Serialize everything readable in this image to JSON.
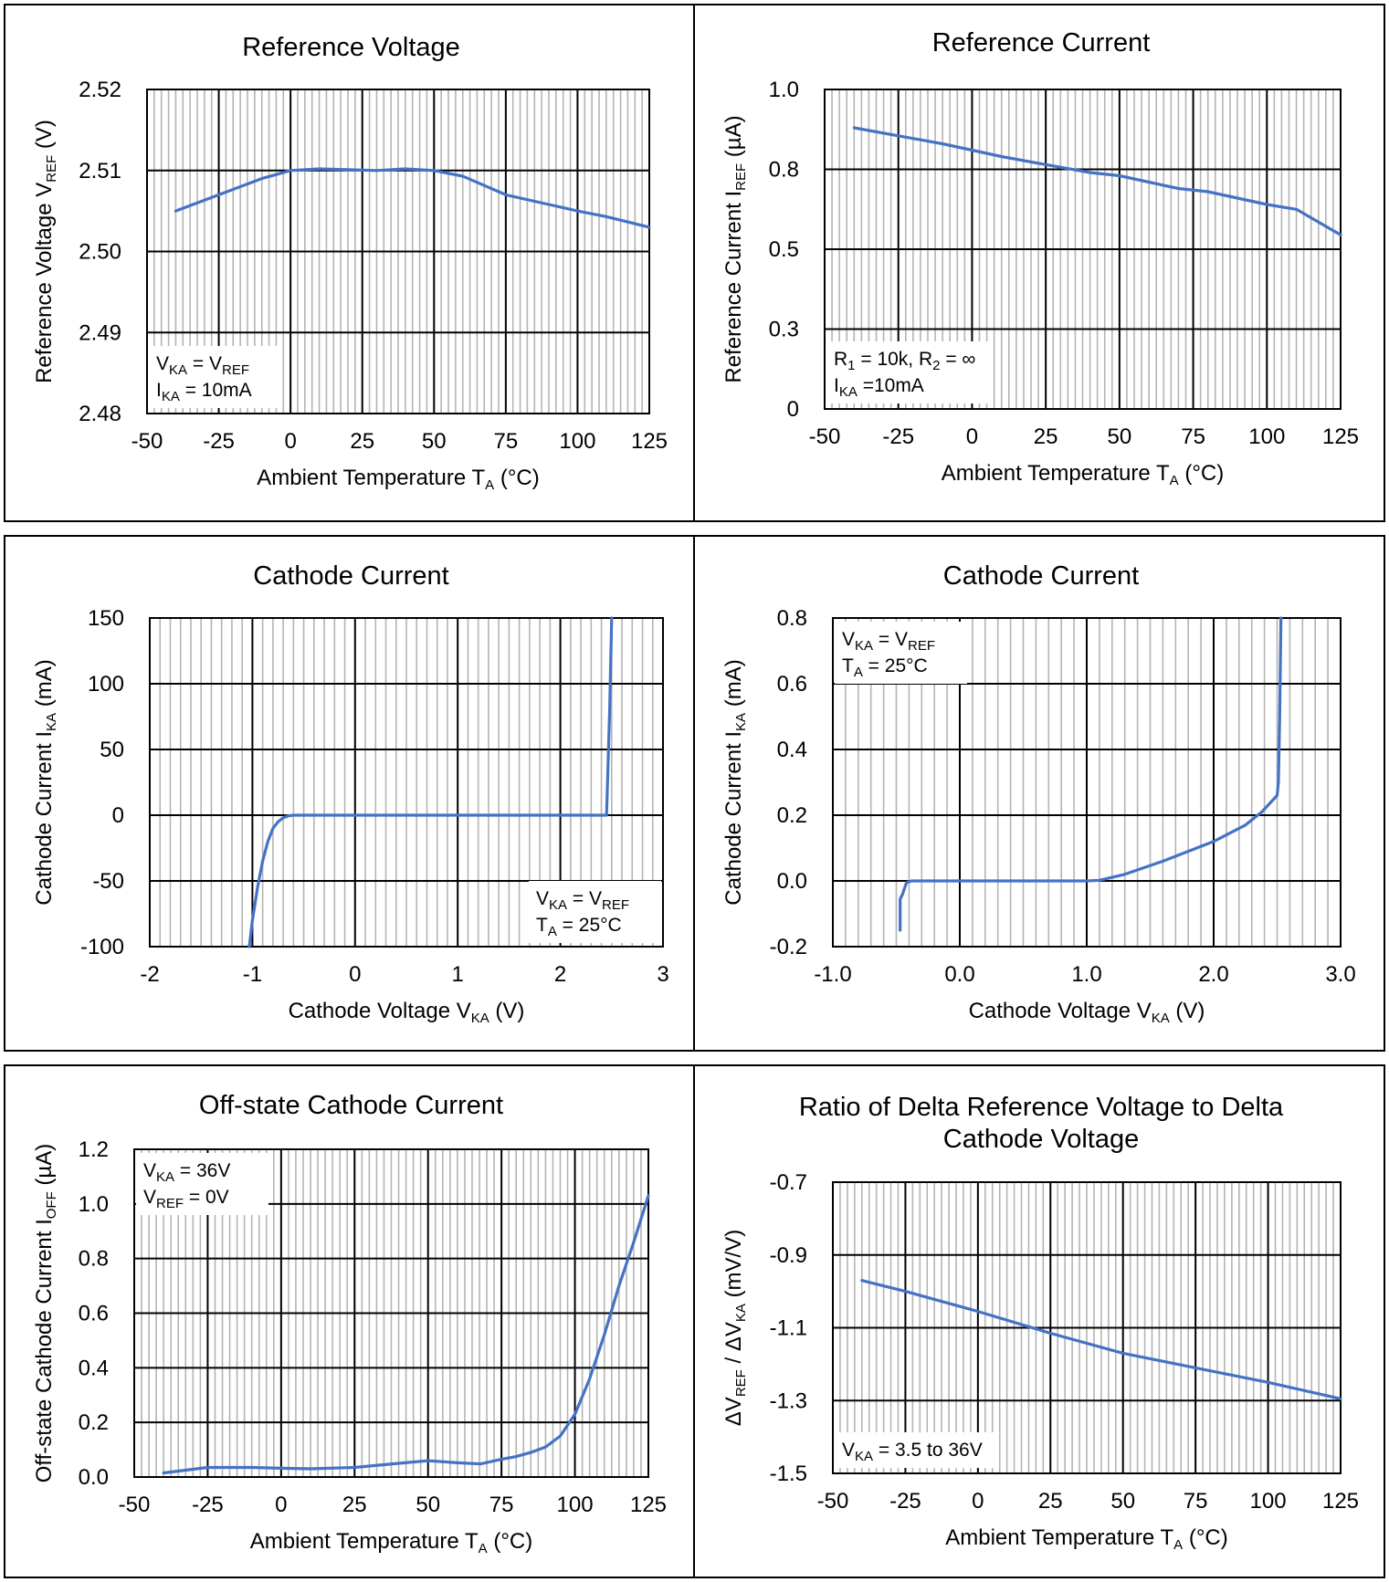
{
  "colors": {
    "series": "#4472C4",
    "grid_major": "#000000",
    "grid_minor": "#b4b4b4",
    "frame": "#000000"
  },
  "chart_data": [
    {
      "id": "ref-voltage",
      "type": "line",
      "title": "Reference Voltage",
      "xlabel": {
        "main": "Ambient Temperature T",
        "sub": "A",
        "tail": " (°C)"
      },
      "ylabel": {
        "main": "Reference Voltage V",
        "sub": "REF",
        "tail": " (V)"
      },
      "xlim": [
        -50,
        125
      ],
      "ylim": [
        2.48,
        2.52
      ],
      "xticks": [
        -50,
        -25,
        0,
        25,
        50,
        75,
        100,
        125
      ],
      "xtick_labels": [
        "-50",
        "-25",
        "0",
        "25",
        "50",
        "75",
        "100",
        "125"
      ],
      "yticks": [
        2.48,
        2.49,
        2.5,
        2.51,
        2.52
      ],
      "ytick_labels": [
        "2.48",
        "2.49",
        "2.50",
        "2.51",
        "2.52"
      ],
      "x_minor": 5,
      "grid": true,
      "annotation": [
        {
          "main": "V",
          "sub": "KA",
          "tail": " = V",
          "sub2": "REF",
          "tail2": ""
        },
        {
          "main": "I",
          "sub": "KA",
          "tail": " = 10mA",
          "sub2": "",
          "tail2": ""
        }
      ],
      "annotation_position": "bottom-left",
      "series": [
        {
          "x": [
            -40,
            -25,
            -10,
            0,
            10,
            20,
            30,
            40,
            50,
            60,
            75,
            90,
            100,
            110,
            125
          ],
          "y": [
            2.505,
            2.507,
            2.509,
            2.51,
            2.5102,
            2.5101,
            2.51,
            2.5102,
            2.51,
            2.5093,
            2.507,
            2.5058,
            2.505,
            2.5043,
            2.503
          ]
        }
      ]
    },
    {
      "id": "ref-current",
      "type": "line",
      "title": "Reference Current",
      "xlabel": {
        "main": "Ambient Temperature T",
        "sub": "A",
        "tail": " (°C)"
      },
      "ylabel": {
        "main": "Reference Current I",
        "sub": "REF",
        "tail": " (µA)"
      },
      "xlim": [
        -50,
        125
      ],
      "ylim": [
        0,
        1.0
      ],
      "xticks": [
        -50,
        -25,
        0,
        25,
        50,
        75,
        100,
        125
      ],
      "xtick_labels": [
        "-50",
        "-25",
        "0",
        "25",
        "50",
        "75",
        "100",
        "125"
      ],
      "yticks": [
        0,
        0.25,
        0.5,
        0.75,
        1.0
      ],
      "ytick_labels": [
        "0",
        "0.3",
        "0.5",
        "0.8",
        "1.0"
      ],
      "x_minor": 5,
      "grid": true,
      "annotation": [
        {
          "main": "R",
          "sub": "1",
          "tail": " = 10k, R",
          "sub2": "2",
          "tail2": " = ∞"
        },
        {
          "main": "I",
          "sub": "KA",
          "tail": " =10mA",
          "sub2": "",
          "tail2": ""
        }
      ],
      "annotation_position": "bottom-left",
      "series": [
        {
          "x": [
            -40,
            -25,
            -10,
            0,
            10,
            25,
            40,
            50,
            60,
            70,
            80,
            90,
            100,
            110,
            125
          ],
          "y": [
            0.88,
            0.855,
            0.83,
            0.81,
            0.79,
            0.765,
            0.74,
            0.73,
            0.71,
            0.69,
            0.68,
            0.66,
            0.64,
            0.625,
            0.545
          ]
        }
      ]
    },
    {
      "id": "cathode-current-wide",
      "type": "line",
      "title": "Cathode Current",
      "xlabel": {
        "main": "Cathode Voltage V",
        "sub": "KA",
        "tail": " (V)"
      },
      "ylabel": {
        "main": "Cathode Current  I",
        "sub": "KA",
        "tail": " (mA)"
      },
      "xlim": [
        -2,
        3
      ],
      "ylim": [
        -100,
        150
      ],
      "xticks": [
        -2,
        -1,
        0,
        1,
        2,
        3
      ],
      "xtick_labels": [
        "-2",
        "-1",
        "0",
        "1",
        "2",
        "3"
      ],
      "yticks": [
        -100,
        -50,
        0,
        50,
        100,
        150
      ],
      "ytick_labels": [
        "-100",
        "-50",
        "0",
        "50",
        "100",
        "150"
      ],
      "x_minor": 5,
      "grid": true,
      "annotation": [
        {
          "main": "V",
          "sub": "KA",
          "tail": " = V",
          "sub2": "REF",
          "tail2": ""
        },
        {
          "main": "T",
          "sub": "A",
          "tail": " = 25°C",
          "sub2": "",
          "tail2": ""
        }
      ],
      "annotation_position": "bottom-right",
      "series": [
        {
          "x": [
            -1.03,
            -1.0,
            -0.95,
            -0.9,
            -0.85,
            -0.8,
            -0.75,
            -0.7,
            -0.65,
            -0.6,
            -0.55,
            -0.5,
            0,
            1,
            2,
            2.45,
            2.48,
            2.5
          ],
          "y": [
            -100,
            -80,
            -55,
            -35,
            -20,
            -10,
            -5,
            -2,
            -0.5,
            0,
            0,
            0,
            0,
            0,
            0,
            0,
            80,
            150
          ]
        }
      ]
    },
    {
      "id": "cathode-current-zoom",
      "type": "line",
      "title": "Cathode Current",
      "xlabel": {
        "main": "Cathode Voltage V",
        "sub": "KA",
        "tail": " (V)"
      },
      "ylabel": {
        "main": "Cathode Current  I",
        "sub": "KA",
        "tail": " (mA)"
      },
      "xlim": [
        -1.0,
        3.0
      ],
      "ylim": [
        -0.2,
        0.8
      ],
      "xticks": [
        -1.0,
        0.0,
        1.0,
        2.0,
        3.0
      ],
      "xtick_labels": [
        "-1.0",
        "0.0",
        "1.0",
        "2.0",
        "3.0"
      ],
      "yticks": [
        -0.2,
        0.0,
        0.2,
        0.4,
        0.6,
        0.8
      ],
      "ytick_labels": [
        "-0.2",
        "0.0",
        "0.2",
        "0.4",
        "0.6",
        "0.8"
      ],
      "x_minor": 5,
      "grid": true,
      "annotation": [
        {
          "main": "V",
          "sub": "KA",
          "tail": " = V",
          "sub2": "REF",
          "tail2": ""
        },
        {
          "main": "T",
          "sub": "A",
          "tail": " = 25°C",
          "sub2": "",
          "tail2": ""
        }
      ],
      "annotation_position": "top-left",
      "series": [
        {
          "x": [
            -0.47,
            -0.47,
            -0.45,
            -0.42,
            -0.38,
            0.0,
            0.5,
            1.0,
            1.1,
            1.3,
            1.6,
            2.0,
            2.25,
            2.38,
            2.5,
            2.51,
            2.52,
            2.53
          ],
          "y": [
            -0.15,
            -0.055,
            -0.04,
            -0.005,
            0,
            0,
            0,
            0,
            0.002,
            0.02,
            0.06,
            0.12,
            0.17,
            0.21,
            0.26,
            0.3,
            0.5,
            0.8
          ]
        }
      ]
    },
    {
      "id": "off-state-current",
      "type": "line",
      "title": "Off-state Cathode Current",
      "xlabel": {
        "main": "Ambient Temperature T",
        "sub": "A",
        "tail": " (°C)"
      },
      "ylabel": {
        "main": "Off-state Cathode Current I",
        "sub": "OFF",
        "tail": " (µA)"
      },
      "xlim": [
        -50,
        125
      ],
      "ylim": [
        0,
        1.2
      ],
      "xticks": [
        -50,
        -25,
        0,
        25,
        50,
        75,
        100,
        125
      ],
      "xtick_labels": [
        "-50",
        "-25",
        "0",
        "25",
        "50",
        "75",
        "100",
        "125"
      ],
      "yticks": [
        0,
        0.2,
        0.4,
        0.6,
        0.8,
        1.0,
        1.2
      ],
      "ytick_labels": [
        "0.0",
        "0.2",
        "0.4",
        "0.6",
        "0.8",
        "1.0",
        "1.2"
      ],
      "x_minor": 5,
      "grid": true,
      "annotation": [
        {
          "main": "V",
          "sub": "KA",
          "tail": " = 36V",
          "sub2": "",
          "tail2": ""
        },
        {
          "main": "V",
          "sub": "REF",
          "tail": " = 0V",
          "sub2": "",
          "tail2": ""
        }
      ],
      "annotation_position": "top-left",
      "series": [
        {
          "x": [
            -40,
            -25,
            -10,
            0,
            10,
            25,
            40,
            50,
            60,
            68,
            75,
            80,
            85,
            90,
            95,
            100,
            105,
            110,
            115,
            120,
            125
          ],
          "y": [
            0.015,
            0.035,
            0.035,
            0.032,
            0.03,
            0.035,
            0.05,
            0.06,
            0.052,
            0.048,
            0.065,
            0.075,
            0.09,
            0.11,
            0.15,
            0.23,
            0.36,
            0.52,
            0.7,
            0.86,
            1.03
          ]
        }
      ]
    },
    {
      "id": "delta-ratio",
      "type": "line",
      "title": [
        "Ratio of Delta Reference Voltage to Delta",
        "Cathode Voltage"
      ],
      "xlabel": {
        "main": "Ambient Temperature T",
        "sub": "A",
        "tail": " (°C)"
      },
      "ylabel": {
        "main": "ΔV",
        "sub": "REF",
        "tail": " / ΔV",
        "sub2": "KA",
        "tail2": " (mV/V)"
      },
      "xlim": [
        -50,
        125
      ],
      "ylim": [
        -1.5,
        -0.7
      ],
      "xticks": [
        -50,
        -25,
        0,
        25,
        50,
        75,
        100,
        125
      ],
      "xtick_labels": [
        "-50",
        "-25",
        "0",
        "25",
        "50",
        "75",
        "100",
        "125"
      ],
      "yticks": [
        -1.5,
        -1.3,
        -1.1,
        -0.9,
        -0.7
      ],
      "ytick_labels": [
        "-1.5",
        "-1.3",
        "-1.1",
        "-0.9",
        "-0.7"
      ],
      "x_minor": 5,
      "grid": true,
      "annotation": [
        {
          "main": "V",
          "sub": "KA",
          "tail": " = 3.5 to 36V",
          "sub2": "",
          "tail2": ""
        }
      ],
      "annotation_position": "bottom-left",
      "series": [
        {
          "x": [
            -40,
            -25,
            0,
            25,
            50,
            75,
            100,
            125
          ],
          "y": [
            -0.97,
            -1.0,
            -1.055,
            -1.115,
            -1.17,
            -1.21,
            -1.25,
            -1.295
          ]
        }
      ]
    }
  ]
}
